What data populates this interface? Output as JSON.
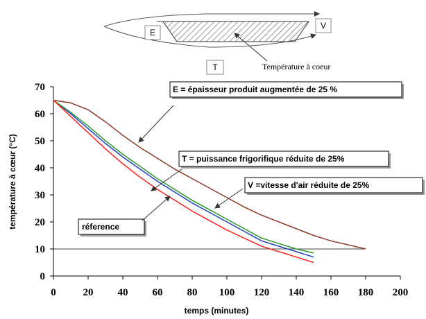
{
  "diagram": {
    "label_e": "E",
    "label_v": "V",
    "label_t": "T",
    "caption": "Température à coeur"
  },
  "chart_data": {
    "type": "line",
    "x_label": "temps (minutes)",
    "y_label": "température à cœur (°C)",
    "x": [
      0,
      10,
      20,
      30,
      40,
      50,
      60,
      70,
      80,
      90,
      100,
      110,
      120,
      130,
      140,
      150,
      160,
      170,
      180
    ],
    "series": [
      {
        "name": "E = épaisseur  produit augmentée de 25 %",
        "color": "#8b3a2a",
        "values": [
          65,
          64,
          61.5,
          57,
          52,
          47.5,
          43.5,
          39.5,
          36,
          32.5,
          29,
          25.5,
          22.5,
          20,
          17.5,
          15,
          13,
          11.5,
          10
        ]
      },
      {
        "name": "T = puissance frigorifique réduite de 25%",
        "color": "#2040c0",
        "values": [
          65,
          60,
          54.5,
          49,
          44,
          39.5,
          35,
          31,
          27,
          23.5,
          20,
          16.5,
          13,
          11,
          9,
          7,
          null,
          null,
          null
        ]
      },
      {
        "name": "V =vitesse d'air réduite de 25%",
        "color": "#2a9a2a",
        "values": [
          65,
          60.5,
          55.5,
          50,
          45,
          40.5,
          36,
          32,
          28,
          24.5,
          21,
          17.5,
          14,
          12,
          10,
          8.5,
          null,
          null,
          null
        ]
      },
      {
        "name": "réference",
        "color": "#ff2020",
        "values": [
          65,
          59,
          53,
          47,
          41.5,
          36.5,
          32,
          28,
          24,
          20.5,
          17,
          14,
          11,
          9,
          7,
          5,
          null,
          null,
          null
        ]
      }
    ],
    "reference_line": 10,
    "xlim": [
      0,
      200
    ],
    "xticks": [
      0,
      20,
      40,
      60,
      80,
      100,
      120,
      140,
      160,
      180,
      200
    ],
    "ylim": [
      0,
      70
    ],
    "yticks": [
      0,
      10,
      20,
      30,
      40,
      50,
      60,
      70
    ]
  }
}
